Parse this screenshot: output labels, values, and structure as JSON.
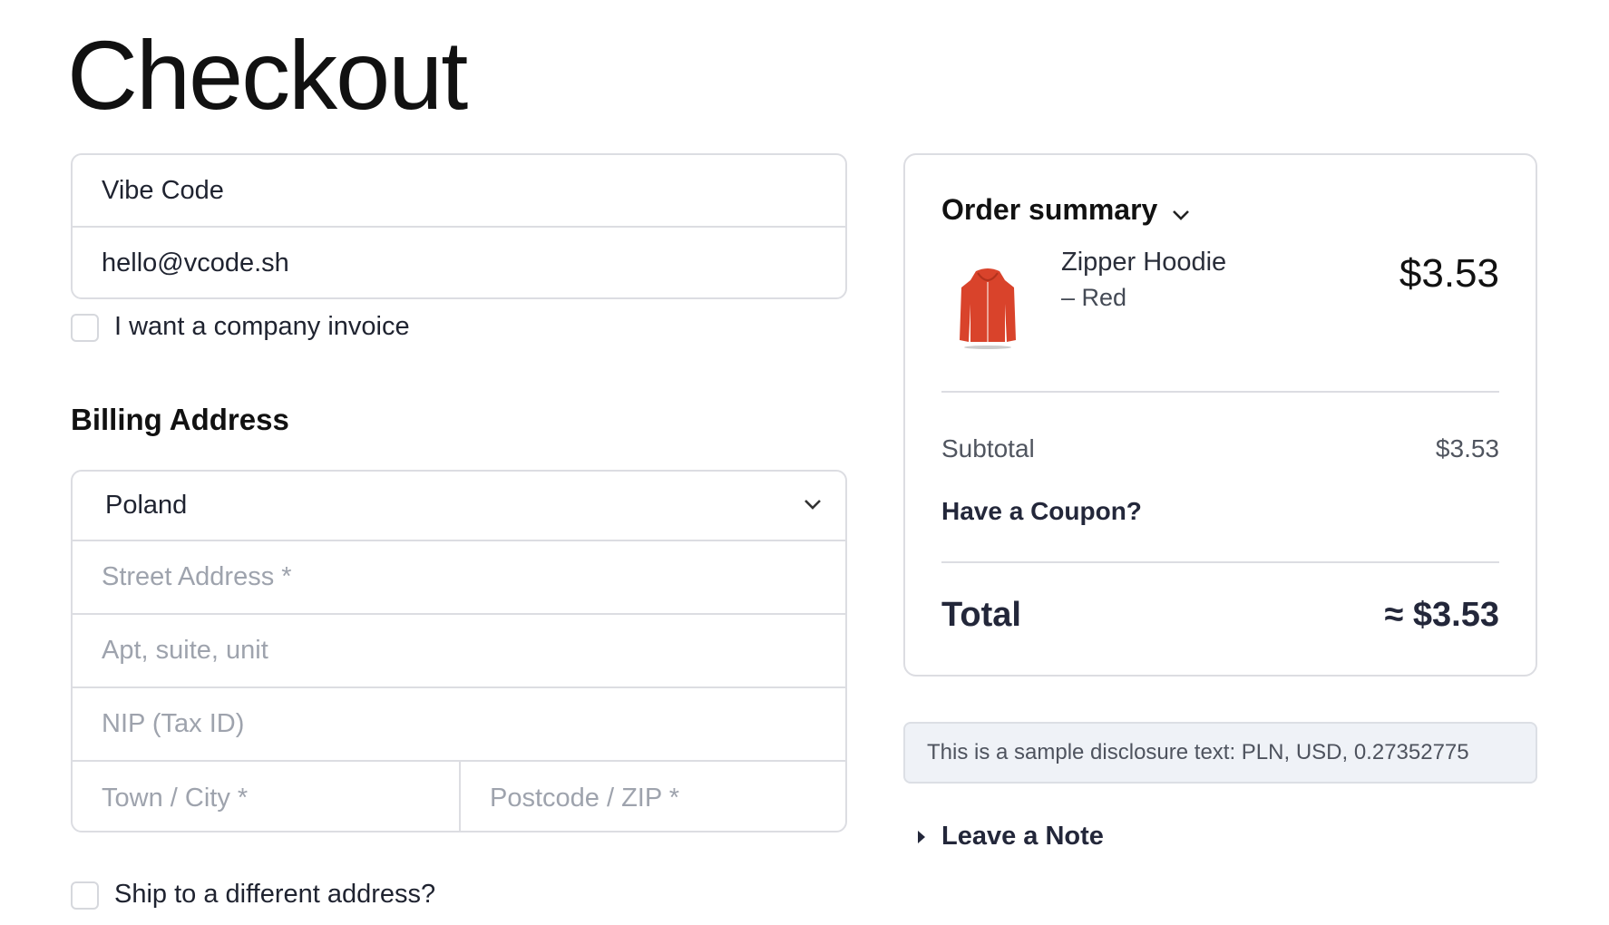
{
  "page": {
    "title": "Checkout"
  },
  "contact": {
    "name_value": "Vibe Code",
    "email_value": "hello@vcode.sh",
    "company_invoice_label": "I want a company invoice",
    "company_invoice_checked": false
  },
  "billing": {
    "heading": "Billing Address",
    "country_value": "Poland",
    "street_placeholder": "Street Address *",
    "apt_placeholder": "Apt, suite, unit",
    "nip_placeholder": "NIP (Tax ID)",
    "city_placeholder": "Town / City *",
    "postcode_placeholder": "Postcode / ZIP *"
  },
  "shipping": {
    "different_address_label": "Ship to a different address?",
    "checked": false
  },
  "summary": {
    "title": "Order summary",
    "item": {
      "name": "Zipper Hoodie",
      "variant": "– Red",
      "price": "$3.53",
      "image_icon": "red-hoodie",
      "color": "#d9432b"
    },
    "subtotal_label": "Subtotal",
    "subtotal_value": "$3.53",
    "coupon_label": "Have a Coupon?",
    "total_label": "Total",
    "total_value": "≈ $3.53"
  },
  "disclosure": {
    "text": "This is a sample disclosure text: PLN, USD, 0.27352775"
  },
  "note": {
    "label": "Leave a Note"
  }
}
